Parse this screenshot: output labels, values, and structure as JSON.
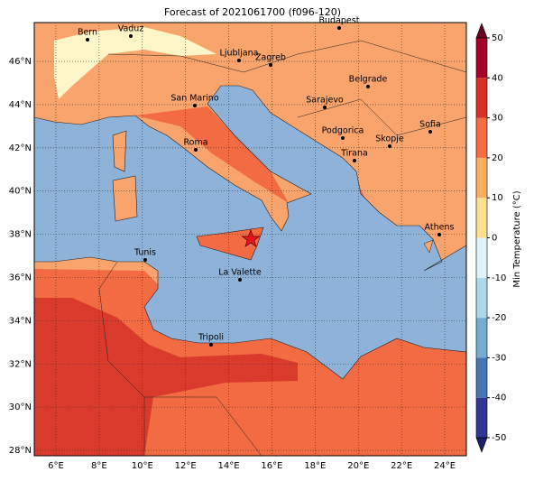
{
  "map": {
    "title": "Forecast of 2021061700 (f096-120)",
    "xlim": [
      5,
      25
    ],
    "ylim": [
      27.75,
      47.8
    ],
    "xticks": [
      {
        "value": 6,
        "label": "6°E"
      },
      {
        "value": 8,
        "label": "8°E"
      },
      {
        "value": 10,
        "label": "10°E"
      },
      {
        "value": 12,
        "label": "12°E"
      },
      {
        "value": 14,
        "label": "14°E"
      },
      {
        "value": 16,
        "label": "16°E"
      },
      {
        "value": 18,
        "label": "18°E"
      },
      {
        "value": 20,
        "label": "20°E"
      },
      {
        "value": 22,
        "label": "22°E"
      },
      {
        "value": 24,
        "label": "24°E"
      }
    ],
    "yticks": [
      {
        "value": 28,
        "label": "28°N"
      },
      {
        "value": 30,
        "label": "30°N"
      },
      {
        "value": 32,
        "label": "32°N"
      },
      {
        "value": 34,
        "label": "34°N"
      },
      {
        "value": 36,
        "label": "36°N"
      },
      {
        "value": 38,
        "label": "38°N"
      },
      {
        "value": 40,
        "label": "40°N"
      },
      {
        "value": 42,
        "label": "42°N"
      },
      {
        "value": 44,
        "label": "44°N"
      },
      {
        "value": 46,
        "label": "46°N"
      }
    ],
    "grid": true,
    "cities": [
      "Bern",
      "Vaduz",
      "Budapest",
      "Ljubljana",
      "Zagreb",
      "Belgrade",
      "San Marino",
      "Sarajevo",
      "Sofia",
      "Podgorica",
      "Skopje",
      "Roma",
      "Tirana",
      "Athens",
      "Tunis",
      "La Valette",
      "Tripoli"
    ]
  },
  "colorbar": {
    "label": "Min Temperature (°C)",
    "ticks": [
      -50,
      -40,
      -30,
      -20,
      -10,
      0,
      10,
      20,
      30,
      40,
      50
    ],
    "colors": [
      "#313695",
      "#4575b4",
      "#74add1",
      "#abd9e9",
      "#e0f3f8",
      "#fee090",
      "#fdae61",
      "#f46d43",
      "#d73027",
      "#a50026"
    ],
    "under_color": "#1f1f66",
    "over_color": "#67001f"
  }
}
